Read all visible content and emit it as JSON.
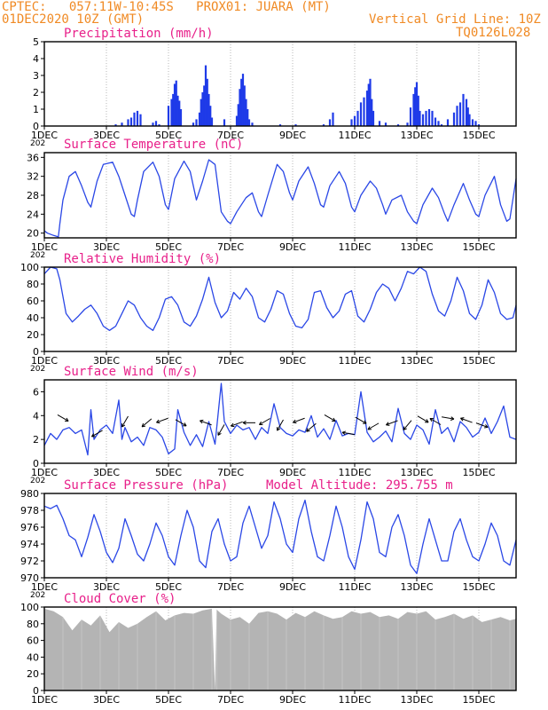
{
  "header": {
    "line1": "CPTEC:   057:11W-10:45S   PROX01: JUARA (MT)",
    "line2": "01DEC2020 10Z (GMT)",
    "grid_note": "Vertical Grid Line: 10Z",
    "code": "TQ0126L028"
  },
  "colors": {
    "line": "#2a47e6",
    "bar": "#1f3be8",
    "cloud": "#b4b4b4",
    "title": "#e8208a",
    "header": "#f08a24"
  },
  "x_axis": {
    "tick_labels": [
      "1DEC",
      "3DEC",
      "5DEC",
      "7DEC",
      "9DEC",
      "11DEC",
      "13DEC",
      "15DEC"
    ],
    "tick_days": [
      1,
      3,
      5,
      7,
      9,
      11,
      13,
      15
    ],
    "range_days": [
      1,
      16.2
    ],
    "year_fragment": "202"
  },
  "chart_data": [
    {
      "id": "precip",
      "type": "bar",
      "title": "Precipitation (mm/h)",
      "ylim": [
        0,
        5
      ],
      "yticks": [
        0,
        1,
        2,
        3,
        4,
        5
      ],
      "x": [
        3.3,
        3.5,
        3.7,
        3.8,
        3.9,
        4.0,
        4.1,
        4.5,
        4.6,
        4.7,
        5.0,
        5.1,
        5.15,
        5.2,
        5.25,
        5.3,
        5.35,
        5.4,
        5.8,
        5.9,
        6.0,
        6.05,
        6.1,
        6.15,
        6.2,
        6.25,
        6.3,
        6.35,
        6.4,
        6.8,
        7.2,
        7.25,
        7.3,
        7.35,
        7.4,
        7.45,
        7.5,
        7.55,
        7.6,
        7.7,
        8.6,
        9.1,
        10.0,
        10.2,
        10.3,
        10.9,
        11.0,
        11.1,
        11.2,
        11.3,
        11.4,
        11.45,
        11.5,
        11.55,
        11.6,
        11.8,
        12.0,
        12.4,
        12.7,
        12.8,
        12.9,
        12.95,
        13.0,
        13.05,
        13.1,
        13.2,
        13.3,
        13.4,
        13.5,
        13.6,
        13.7,
        13.8,
        14.0,
        14.2,
        14.3,
        14.4,
        14.5,
        14.6,
        14.65,
        14.7,
        14.8,
        14.9,
        15.0
      ],
      "values": [
        0.1,
        0.2,
        0.4,
        0.5,
        0.8,
        0.9,
        0.7,
        0.2,
        0.3,
        0.1,
        1.2,
        1.6,
        1.9,
        2.5,
        2.7,
        1.8,
        1.5,
        1.0,
        0.2,
        0.4,
        0.8,
        1.6,
        2.0,
        2.4,
        3.6,
        2.8,
        1.9,
        1.2,
        0.5,
        0.4,
        0.6,
        1.3,
        2.2,
        2.8,
        3.1,
        2.4,
        1.6,
        1.0,
        0.4,
        0.2,
        0.1,
        0.1,
        0.1,
        0.4,
        0.8,
        0.4,
        0.6,
        0.9,
        1.4,
        1.7,
        2.1,
        2.5,
        2.8,
        1.6,
        0.9,
        0.3,
        0.2,
        0.1,
        0.2,
        1.1,
        1.9,
        2.3,
        2.6,
        1.8,
        0.9,
        0.7,
        0.9,
        1.0,
        0.9,
        0.5,
        0.3,
        0.1,
        0.4,
        0.8,
        1.2,
        1.4,
        1.9,
        1.6,
        1.1,
        0.7,
        0.4,
        0.3,
        0.1
      ]
    },
    {
      "id": "temp",
      "type": "line",
      "title": "Surface Temperature (nC)",
      "ylim": [
        19,
        37
      ],
      "yticks": [
        20,
        24,
        28,
        32,
        36
      ],
      "x": [
        1.0,
        1.1,
        1.3,
        1.45,
        1.5,
        1.6,
        1.8,
        2.0,
        2.2,
        2.4,
        2.5,
        2.7,
        2.9,
        3.2,
        3.4,
        3.6,
        3.8,
        3.9,
        4.0,
        4.2,
        4.5,
        4.7,
        4.9,
        5.0,
        5.2,
        5.5,
        5.7,
        5.9,
        6.1,
        6.3,
        6.5,
        6.7,
        6.9,
        7.0,
        7.2,
        7.5,
        7.7,
        7.9,
        8.0,
        8.2,
        8.5,
        8.7,
        8.9,
        9.0,
        9.2,
        9.5,
        9.7,
        9.9,
        10.0,
        10.2,
        10.5,
        10.7,
        10.9,
        11.0,
        11.2,
        11.5,
        11.7,
        11.9,
        12.0,
        12.2,
        12.5,
        12.7,
        12.9,
        13.0,
        13.2,
        13.5,
        13.7,
        13.9,
        14.0,
        14.2,
        14.5,
        14.7,
        14.9,
        15.0,
        15.2,
        15.5,
        15.7,
        15.9,
        16.0,
        16.2
      ],
      "values": [
        20.5,
        20.0,
        19.5,
        19.2,
        22.0,
        27.0,
        32.0,
        33.0,
        30.0,
        26.5,
        25.5,
        31.0,
        34.5,
        35.0,
        32.0,
        28.0,
        24.0,
        23.5,
        27.0,
        33.0,
        35.0,
        32.0,
        26.0,
        25.0,
        31.5,
        35.2,
        33.0,
        27.0,
        31.0,
        35.5,
        34.5,
        24.5,
        22.5,
        22.0,
        24.5,
        27.5,
        28.5,
        24.5,
        23.5,
        28.0,
        34.5,
        33.0,
        28.5,
        27.0,
        31.0,
        34.0,
        30.5,
        26.0,
        25.5,
        30.0,
        33.0,
        30.5,
        25.5,
        24.5,
        28.0,
        31.0,
        29.5,
        26.0,
        24.0,
        27.0,
        28.0,
        24.5,
        22.5,
        22.0,
        26.0,
        29.5,
        27.5,
        24.0,
        22.5,
        26.0,
        30.5,
        27.0,
        24.0,
        23.5,
        28.0,
        32.0,
        26.0,
        22.5,
        23.0,
        31.5
      ]
    },
    {
      "id": "rh",
      "type": "line",
      "title": "Relative Humidity (%)",
      "ylim": [
        0,
        100
      ],
      "yticks": [
        0,
        20,
        40,
        60,
        80,
        100
      ],
      "x": [
        1.0,
        1.2,
        1.4,
        1.5,
        1.7,
        1.9,
        2.1,
        2.3,
        2.5,
        2.7,
        2.9,
        3.1,
        3.3,
        3.5,
        3.7,
        3.9,
        4.1,
        4.3,
        4.5,
        4.7,
        4.9,
        5.1,
        5.3,
        5.5,
        5.7,
        5.9,
        6.1,
        6.3,
        6.5,
        6.7,
        6.9,
        7.1,
        7.3,
        7.5,
        7.7,
        7.9,
        8.1,
        8.3,
        8.5,
        8.7,
        8.9,
        9.1,
        9.3,
        9.5,
        9.7,
        9.9,
        10.1,
        10.3,
        10.5,
        10.7,
        10.9,
        11.1,
        11.3,
        11.5,
        11.7,
        11.9,
        12.1,
        12.3,
        12.5,
        12.7,
        12.9,
        13.1,
        13.3,
        13.5,
        13.7,
        13.9,
        14.1,
        14.3,
        14.5,
        14.7,
        14.9,
        15.1,
        15.3,
        15.5,
        15.7,
        15.9,
        16.1,
        16.2
      ],
      "values": [
        92,
        100,
        98,
        85,
        45,
        35,
        42,
        50,
        55,
        45,
        30,
        25,
        30,
        45,
        60,
        55,
        40,
        30,
        25,
        40,
        62,
        65,
        55,
        35,
        30,
        42,
        62,
        88,
        58,
        40,
        48,
        70,
        62,
        75,
        65,
        40,
        35,
        50,
        72,
        68,
        45,
        30,
        28,
        38,
        70,
        72,
        52,
        40,
        48,
        68,
        72,
        42,
        35,
        50,
        70,
        80,
        75,
        60,
        75,
        95,
        92,
        100,
        95,
        68,
        48,
        42,
        60,
        88,
        72,
        45,
        38,
        55,
        85,
        70,
        45,
        38,
        40,
        55
      ]
    },
    {
      "id": "wind",
      "type": "line",
      "title": "Surface Wind (m/s)",
      "ylim": [
        0,
        7
      ],
      "yticks": [
        0,
        2,
        4,
        6
      ],
      "x": [
        1.0,
        1.2,
        1.4,
        1.6,
        1.8,
        2.0,
        2.2,
        2.4,
        2.5,
        2.6,
        2.8,
        3.0,
        3.2,
        3.4,
        3.5,
        3.6,
        3.8,
        4.0,
        4.2,
        4.4,
        4.6,
        4.8,
        5.0,
        5.2,
        5.3,
        5.5,
        5.7,
        5.9,
        6.1,
        6.3,
        6.5,
        6.7,
        6.8,
        7.0,
        7.2,
        7.4,
        7.6,
        7.8,
        8.0,
        8.2,
        8.4,
        8.6,
        8.8,
        9.0,
        9.2,
        9.4,
        9.6,
        9.8,
        10.0,
        10.2,
        10.4,
        10.6,
        10.8,
        11.0,
        11.2,
        11.4,
        11.6,
        11.8,
        12.0,
        12.2,
        12.4,
        12.6,
        12.8,
        13.0,
        13.2,
        13.4,
        13.6,
        13.8,
        14.0,
        14.2,
        14.4,
        14.6,
        14.8,
        15.0,
        15.2,
        15.4,
        15.6,
        15.8,
        16.0,
        16.2
      ],
      "values": [
        1.5,
        2.5,
        2.0,
        2.8,
        3.0,
        2.5,
        2.8,
        0.7,
        4.5,
        2.0,
        2.8,
        3.2,
        2.5,
        5.3,
        2.0,
        3.0,
        1.8,
        2.2,
        1.5,
        3.0,
        2.8,
        2.2,
        0.8,
        1.2,
        4.5,
        2.6,
        1.5,
        2.4,
        1.4,
        3.5,
        1.6,
        6.7,
        3.5,
        2.5,
        3.2,
        2.8,
        3.0,
        2.0,
        3.0,
        2.5,
        5.0,
        3.0,
        2.5,
        2.3,
        2.8,
        2.6,
        4.0,
        2.2,
        2.9,
        2.0,
        3.6,
        2.3,
        2.5,
        2.4,
        6.0,
        2.6,
        1.8,
        2.2,
        2.7,
        1.8,
        4.6,
        2.5,
        2.0,
        3.2,
        2.8,
        1.6,
        4.5,
        2.5,
        3.0,
        1.8,
        3.5,
        3.0,
        2.2,
        2.6,
        3.8,
        2.5,
        3.5,
        4.8,
        2.2,
        2.0
      ],
      "arrows_x": [
        1.6,
        2.7,
        3.6,
        4.3,
        4.8,
        5.4,
        6.2,
        6.7,
        7.2,
        7.6,
        8.1,
        8.6,
        9.2,
        9.6,
        10.2,
        10.8,
        11.2,
        11.6,
        12.2,
        12.7,
        13.2,
        13.6,
        14.0,
        14.6,
        15.1
      ],
      "arrows_y": [
        3.8,
        2.5,
        3.5,
        3.4,
        3.6,
        3.4,
        3.4,
        2.8,
        3.3,
        3.4,
        3.5,
        3.2,
        3.6,
        3.0,
        3.8,
        2.5,
        3.6,
        3.1,
        3.4,
        3.2,
        3.7,
        3.5,
        3.8,
        3.6,
        3.2
      ],
      "arrows_deg": [
        330,
        210,
        240,
        220,
        200,
        330,
        160,
        240,
        200,
        180,
        210,
        240,
        200,
        220,
        330,
        170,
        330,
        210,
        200,
        230,
        330,
        150,
        350,
        160,
        340
      ]
    },
    {
      "id": "pressure",
      "type": "line",
      "title": "Surface Pressure (hPa)",
      "annotation": "Model Altitude: 295.755 m",
      "ylim": [
        970,
        980
      ],
      "yticks": [
        970,
        972,
        974,
        976,
        978,
        980
      ],
      "x": [
        1.0,
        1.2,
        1.4,
        1.6,
        1.8,
        2.0,
        2.2,
        2.4,
        2.6,
        2.8,
        3.0,
        3.2,
        3.4,
        3.6,
        3.8,
        4.0,
        4.2,
        4.4,
        4.6,
        4.8,
        5.0,
        5.2,
        5.4,
        5.6,
        5.8,
        6.0,
        6.2,
        6.4,
        6.6,
        6.8,
        7.0,
        7.2,
        7.4,
        7.6,
        7.8,
        8.0,
        8.2,
        8.4,
        8.6,
        8.8,
        9.0,
        9.2,
        9.4,
        9.6,
        9.8,
        10.0,
        10.2,
        10.4,
        10.6,
        10.8,
        11.0,
        11.2,
        11.4,
        11.6,
        11.8,
        12.0,
        12.2,
        12.4,
        12.6,
        12.8,
        13.0,
        13.2,
        13.4,
        13.6,
        13.8,
        14.0,
        14.2,
        14.4,
        14.6,
        14.8,
        15.0,
        15.2,
        15.4,
        15.6,
        15.8,
        16.0,
        16.2
      ],
      "values": [
        978.5,
        978.2,
        978.6,
        977.0,
        975.0,
        974.5,
        972.5,
        974.8,
        977.5,
        975.5,
        973.0,
        971.8,
        973.5,
        977.0,
        975.0,
        972.8,
        972.0,
        974.0,
        976.5,
        975.0,
        972.5,
        971.5,
        975.0,
        978.0,
        976.0,
        972.0,
        971.2,
        975.5,
        977.0,
        974.0,
        972.0,
        972.5,
        976.5,
        978.5,
        976.0,
        973.5,
        975.0,
        979.0,
        977.0,
        974.0,
        973.0,
        977.0,
        979.2,
        975.5,
        972.5,
        972.0,
        975.0,
        978.5,
        976.0,
        972.5,
        971.0,
        974.5,
        979.0,
        977.0,
        973.0,
        972.5,
        976.0,
        977.5,
        975.0,
        971.5,
        970.5,
        974.0,
        977.0,
        974.5,
        972.0,
        972.0,
        975.5,
        977.0,
        974.5,
        972.5,
        972.0,
        974.0,
        976.5,
        975.0,
        972.0,
        971.5,
        974.5
      ]
    },
    {
      "id": "cloud",
      "type": "area",
      "title": "Cloud Cover (%)",
      "ylim": [
        0,
        100
      ],
      "yticks": [
        0,
        20,
        40,
        60,
        80,
        100
      ],
      "x": [
        1.0,
        1.3,
        1.6,
        1.9,
        2.2,
        2.5,
        2.8,
        3.1,
        3.4,
        3.7,
        4.0,
        4.3,
        4.6,
        4.9,
        5.2,
        5.5,
        5.8,
        6.1,
        6.4,
        6.5,
        6.55,
        6.7,
        7.0,
        7.3,
        7.6,
        7.9,
        8.2,
        8.5,
        8.8,
        9.1,
        9.4,
        9.7,
        10.0,
        10.3,
        10.6,
        10.9,
        11.2,
        11.5,
        11.8,
        12.1,
        12.4,
        12.7,
        13.0,
        13.3,
        13.6,
        13.9,
        14.2,
        14.5,
        14.8,
        15.1,
        15.4,
        15.7,
        16.0,
        16.2
      ],
      "values": [
        98,
        95,
        88,
        72,
        85,
        78,
        90,
        70,
        82,
        75,
        80,
        88,
        95,
        84,
        90,
        93,
        92,
        96,
        98,
        0,
        97,
        92,
        85,
        88,
        80,
        93,
        95,
        92,
        85,
        93,
        88,
        95,
        90,
        86,
        88,
        95,
        92,
        94,
        88,
        90,
        86,
        94,
        92,
        95,
        85,
        88,
        92,
        86,
        90,
        82,
        85,
        88,
        84,
        86
      ]
    }
  ]
}
